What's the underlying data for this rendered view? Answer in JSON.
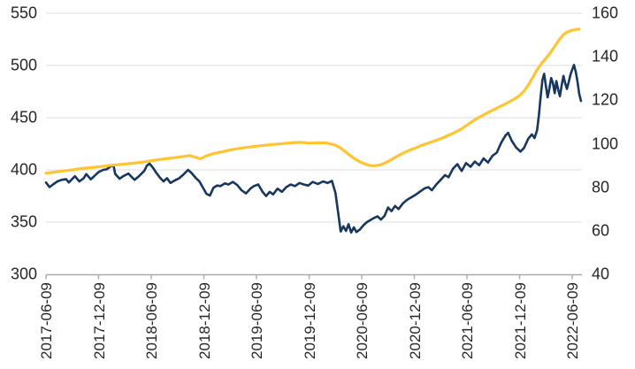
{
  "chart_data": {
    "type": "line",
    "title": "",
    "legend": "none",
    "grid": "horizontal, left-axis ticks, light gray",
    "x_axis": {
      "unit": "date",
      "tick_labels": [
        "2017-06-09",
        "2017-12-09",
        "2018-06-09",
        "2018-12-09",
        "2019-06-09",
        "2019-12-09",
        "2020-06-09",
        "2020-12-09",
        "2021-06-09",
        "2021-12-09",
        "2022-06-09"
      ],
      "tick_positions_months": [
        0,
        6,
        12,
        18,
        24,
        30,
        36,
        42,
        48,
        54,
        60
      ],
      "label_rotation_degrees": 90
    },
    "left_axis": {
      "range": [
        300,
        550
      ],
      "tick_labels": [
        "300",
        "350",
        "400",
        "450",
        "500",
        "550"
      ],
      "tick_values": [
        300,
        350,
        400,
        450,
        500,
        550
      ]
    },
    "right_axis": {
      "range": [
        40,
        160
      ],
      "tick_labels": [
        "40",
        "60",
        "80",
        "100",
        "120",
        "140",
        "160"
      ],
      "tick_values": [
        40,
        60,
        80,
        100,
        120,
        140,
        160
      ]
    },
    "series": [
      {
        "name": "navy-volatile-series",
        "axis": "left",
        "color": "#17375E",
        "stroke_width": 2.6,
        "points": [
          [
            0,
            388
          ],
          [
            0.4,
            383.5
          ],
          [
            0.8,
            386
          ],
          [
            1.3,
            389
          ],
          [
            1.8,
            390.5
          ],
          [
            2.3,
            391
          ],
          [
            2.6,
            388
          ],
          [
            3.3,
            394
          ],
          [
            3.8,
            389
          ],
          [
            4.3,
            392
          ],
          [
            4.6,
            396
          ],
          [
            5.1,
            391
          ],
          [
            5.5,
            394
          ],
          [
            6.0,
            398
          ],
          [
            6.5,
            400
          ],
          [
            6.9,
            400.5
          ],
          [
            7.4,
            403.5
          ],
          [
            7.7,
            404
          ],
          [
            7.9,
            396
          ],
          [
            8.4,
            391.5
          ],
          [
            8.8,
            394
          ],
          [
            9.4,
            396.5
          ],
          [
            9.8,
            393
          ],
          [
            10.1,
            390.5
          ],
          [
            10.6,
            394
          ],
          [
            11.2,
            399
          ],
          [
            11.5,
            404
          ],
          [
            11.8,
            406
          ],
          [
            12.2,
            402
          ],
          [
            12.6,
            397
          ],
          [
            13.0,
            392.5
          ],
          [
            13.4,
            389
          ],
          [
            13.8,
            392
          ],
          [
            14.2,
            387.5
          ],
          [
            14.7,
            390
          ],
          [
            15.2,
            392
          ],
          [
            15.6,
            395
          ],
          [
            16.2,
            400
          ],
          [
            16.6,
            397
          ],
          [
            17.1,
            392
          ],
          [
            17.5,
            389
          ],
          [
            17.9,
            383
          ],
          [
            18.3,
            377
          ],
          [
            18.7,
            375.5
          ],
          [
            19.1,
            383
          ],
          [
            19.5,
            385
          ],
          [
            19.9,
            384.5
          ],
          [
            20.4,
            387
          ],
          [
            20.8,
            386
          ],
          [
            21.3,
            388.5
          ],
          [
            21.8,
            385.5
          ],
          [
            22.3,
            380.5
          ],
          [
            22.8,
            377.5
          ],
          [
            23.3,
            382
          ],
          [
            23.7,
            384.5
          ],
          [
            24.2,
            386
          ],
          [
            24.7,
            379
          ],
          [
            25.1,
            375
          ],
          [
            25.5,
            379
          ],
          [
            25.9,
            376.5
          ],
          [
            26.4,
            382
          ],
          [
            26.9,
            379
          ],
          [
            27.4,
            383.5
          ],
          [
            27.9,
            386
          ],
          [
            28.4,
            384.5
          ],
          [
            28.9,
            387.5
          ],
          [
            29.4,
            386
          ],
          [
            29.9,
            385
          ],
          [
            30.4,
            388.5
          ],
          [
            31.0,
            386.5
          ],
          [
            31.6,
            389
          ],
          [
            32.1,
            387.5
          ],
          [
            32.6,
            389.5
          ],
          [
            33.0,
            378
          ],
          [
            33.3,
            360
          ],
          [
            33.6,
            341
          ],
          [
            33.9,
            346
          ],
          [
            34.2,
            341.5
          ],
          [
            34.5,
            348
          ],
          [
            34.8,
            340
          ],
          [
            35.1,
            345
          ],
          [
            35.4,
            340.5
          ],
          [
            35.8,
            343
          ],
          [
            36.2,
            347
          ],
          [
            36.6,
            350
          ],
          [
            37.0,
            352
          ],
          [
            37.4,
            354
          ],
          [
            37.8,
            355.5
          ],
          [
            38.2,
            352.5
          ],
          [
            38.6,
            356
          ],
          [
            39.0,
            364
          ],
          [
            39.4,
            360.5
          ],
          [
            39.8,
            365.5
          ],
          [
            40.2,
            362.5
          ],
          [
            40.7,
            368
          ],
          [
            41.2,
            371.5
          ],
          [
            41.7,
            374
          ],
          [
            42.2,
            376.5
          ],
          [
            42.7,
            379.5
          ],
          [
            43.2,
            382.5
          ],
          [
            43.6,
            383.5
          ],
          [
            44.0,
            380.5
          ],
          [
            44.5,
            386
          ],
          [
            45.0,
            390.5
          ],
          [
            45.5,
            395
          ],
          [
            45.9,
            393
          ],
          [
            46.4,
            401
          ],
          [
            46.9,
            405.5
          ],
          [
            47.4,
            399
          ],
          [
            47.9,
            406.5
          ],
          [
            48.4,
            403
          ],
          [
            48.9,
            408
          ],
          [
            49.4,
            404.5
          ],
          [
            49.9,
            411
          ],
          [
            50.4,
            407
          ],
          [
            50.9,
            413.5
          ],
          [
            51.4,
            416.5
          ],
          [
            51.9,
            426
          ],
          [
            52.4,
            433
          ],
          [
            52.7,
            435.5
          ],
          [
            53.1,
            428
          ],
          [
            53.6,
            421.5
          ],
          [
            54.1,
            417.5
          ],
          [
            54.5,
            421
          ],
          [
            55.0,
            430
          ],
          [
            55.4,
            434
          ],
          [
            55.7,
            430.5
          ],
          [
            56.0,
            438
          ],
          [
            56.2,
            452
          ],
          [
            56.4,
            470
          ],
          [
            56.6,
            486
          ],
          [
            56.8,
            492
          ],
          [
            57.0,
            480
          ],
          [
            57.2,
            469.5
          ],
          [
            57.4,
            478
          ],
          [
            57.6,
            488
          ],
          [
            57.8,
            483
          ],
          [
            58.0,
            473.5
          ],
          [
            58.2,
            485
          ],
          [
            58.4,
            477
          ],
          [
            58.6,
            470.5
          ],
          [
            58.8,
            481
          ],
          [
            59.0,
            490
          ],
          [
            59.2,
            483
          ],
          [
            59.4,
            477.5
          ],
          [
            59.6,
            484
          ],
          [
            59.8,
            491
          ],
          [
            60.0,
            496
          ],
          [
            60.2,
            500.5
          ],
          [
            60.4,
            494
          ],
          [
            60.6,
            485
          ],
          [
            60.8,
            473
          ],
          [
            61.0,
            466
          ]
        ]
      },
      {
        "name": "gold-smooth-series",
        "axis": "right",
        "color": "#FFC431",
        "stroke_width": 3.2,
        "points": [
          [
            0,
            86.5
          ],
          [
            1,
            87
          ],
          [
            2,
            87.5
          ],
          [
            3,
            88
          ],
          [
            4,
            88.6
          ],
          [
            5,
            89
          ],
          [
            6,
            89.4
          ],
          [
            7,
            89.9
          ],
          [
            8,
            90.3
          ],
          [
            9,
            90.7
          ],
          [
            10,
            91.1
          ],
          [
            11,
            91.6
          ],
          [
            12,
            92.2
          ],
          [
            13,
            92.8
          ],
          [
            14,
            93.3
          ],
          [
            15,
            93.8
          ],
          [
            16,
            94.4
          ],
          [
            16.4,
            94.6
          ],
          [
            17,
            93.9
          ],
          [
            17.6,
            93.1
          ],
          [
            18.2,
            94.3
          ],
          [
            19,
            95.4
          ],
          [
            20,
            96.2
          ],
          [
            21,
            97.2
          ],
          [
            22,
            97.9
          ],
          [
            23,
            98.4
          ],
          [
            24,
            98.9
          ],
          [
            25,
            99.3
          ],
          [
            26,
            99.7
          ],
          [
            27,
            100.1
          ],
          [
            28,
            100.5
          ],
          [
            29,
            100.7
          ],
          [
            30,
            100.3
          ],
          [
            31,
            100.5
          ],
          [
            32,
            100.4
          ],
          [
            33,
            99.4
          ],
          [
            33.5,
            98.3
          ],
          [
            34,
            96.8
          ],
          [
            34.5,
            95.2
          ],
          [
            35,
            93.7
          ],
          [
            35.5,
            92.4
          ],
          [
            36,
            91.3
          ],
          [
            36.5,
            90.5
          ],
          [
            37,
            90
          ],
          [
            37.5,
            89.9
          ],
          [
            38,
            90.2
          ],
          [
            38.5,
            90.9
          ],
          [
            39,
            91.9
          ],
          [
            39.5,
            93
          ],
          [
            40,
            94.2
          ],
          [
            40.5,
            95.3
          ],
          [
            41,
            96.2
          ],
          [
            41.5,
            97.1
          ],
          [
            42,
            97.9
          ],
          [
            42.5,
            98.7
          ],
          [
            43,
            99.5
          ],
          [
            43.5,
            100.2
          ],
          [
            44,
            100.9
          ],
          [
            44.5,
            101.6
          ],
          [
            45,
            102.4
          ],
          [
            45.5,
            103.2
          ],
          [
            46,
            104.1
          ],
          [
            46.5,
            105
          ],
          [
            47,
            106
          ],
          [
            47.5,
            107.2
          ],
          [
            48,
            108.6
          ],
          [
            48.5,
            110
          ],
          [
            49,
            111.3
          ],
          [
            49.5,
            112.4
          ],
          [
            50,
            113.5
          ],
          [
            50.5,
            114.6
          ],
          [
            51,
            115.6
          ],
          [
            51.5,
            116.6
          ],
          [
            52,
            117.6
          ],
          [
            52.5,
            118.6
          ],
          [
            53,
            119.7
          ],
          [
            53.5,
            120.8
          ],
          [
            54,
            122.2
          ],
          [
            54.5,
            124.2
          ],
          [
            55,
            127
          ],
          [
            55.5,
            130.5
          ],
          [
            56,
            134
          ],
          [
            56.5,
            137
          ],
          [
            57,
            139.3
          ],
          [
            57.5,
            141.8
          ],
          [
            58,
            144.8
          ],
          [
            58.5,
            147.8
          ],
          [
            59,
            150.2
          ],
          [
            59.5,
            151.5
          ],
          [
            60,
            152.2
          ],
          [
            60.5,
            152.6
          ],
          [
            60.8,
            152.7
          ]
        ]
      }
    ]
  },
  "colors": {
    "background": "#ffffff",
    "gridline": "#DCDCDC",
    "axis_line": "#A9A9A9",
    "tick_mark": "#A9A9A9",
    "label_text": "#262626",
    "series_navy": "#17375E",
    "series_gold": "#FFC431"
  }
}
